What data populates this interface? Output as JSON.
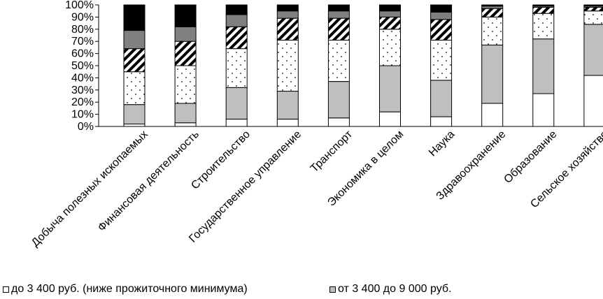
{
  "chart_data": {
    "type": "stacked-bar-100",
    "categories": [
      "Добыча полезных ископаемых",
      "Финансовая деятельность",
      "Строительство",
      "Государственное управление",
      "Транспорт",
      "Экономика в целом",
      "Наука",
      "Здравоохранение",
      "Образование",
      "Сельское хозяйство"
    ],
    "y_ticks": [
      "0%",
      "10%",
      "20%",
      "30%",
      "40%",
      "50%",
      "60%",
      "70%",
      "80%",
      "90%",
      "100%"
    ],
    "ylim": [
      0,
      100
    ],
    "series": [
      {
        "name": "до 3 400 руб. (ниже прожиточного минимума)",
        "pattern": "white",
        "values": [
          2,
          3,
          6,
          6,
          7,
          12,
          8,
          19,
          27,
          42
        ]
      },
      {
        "name": "от 3 400 до 9 000 руб.",
        "pattern": "gray",
        "values": [
          16,
          16,
          26,
          23,
          30,
          38,
          30,
          48,
          45,
          42
        ]
      },
      {
        "name": "",
        "pattern": "dots",
        "values": [
          27,
          31,
          32,
          42,
          34,
          30,
          33,
          23,
          21,
          11
        ]
      },
      {
        "name": "",
        "pattern": "hatch",
        "values": [
          19,
          20,
          18,
          18,
          18,
          10,
          17,
          7,
          5,
          3
        ]
      },
      {
        "name": "",
        "pattern": "darkgray",
        "values": [
          15,
          12,
          10,
          6,
          6,
          5,
          6,
          2,
          1,
          1
        ]
      },
      {
        "name": "",
        "pattern": "black",
        "values": [
          21,
          18,
          8,
          5,
          5,
          5,
          6,
          1,
          1,
          1
        ]
      }
    ],
    "colors": {
      "white": "#ffffff",
      "gray": "#bfbfbf",
      "darkgray": "#808080",
      "black": "#000000"
    }
  },
  "legend": {
    "item1": "до 3 400 руб. (ниже прожиточного минимума)",
    "item2": "от 3 400 до 9 000 руб."
  }
}
